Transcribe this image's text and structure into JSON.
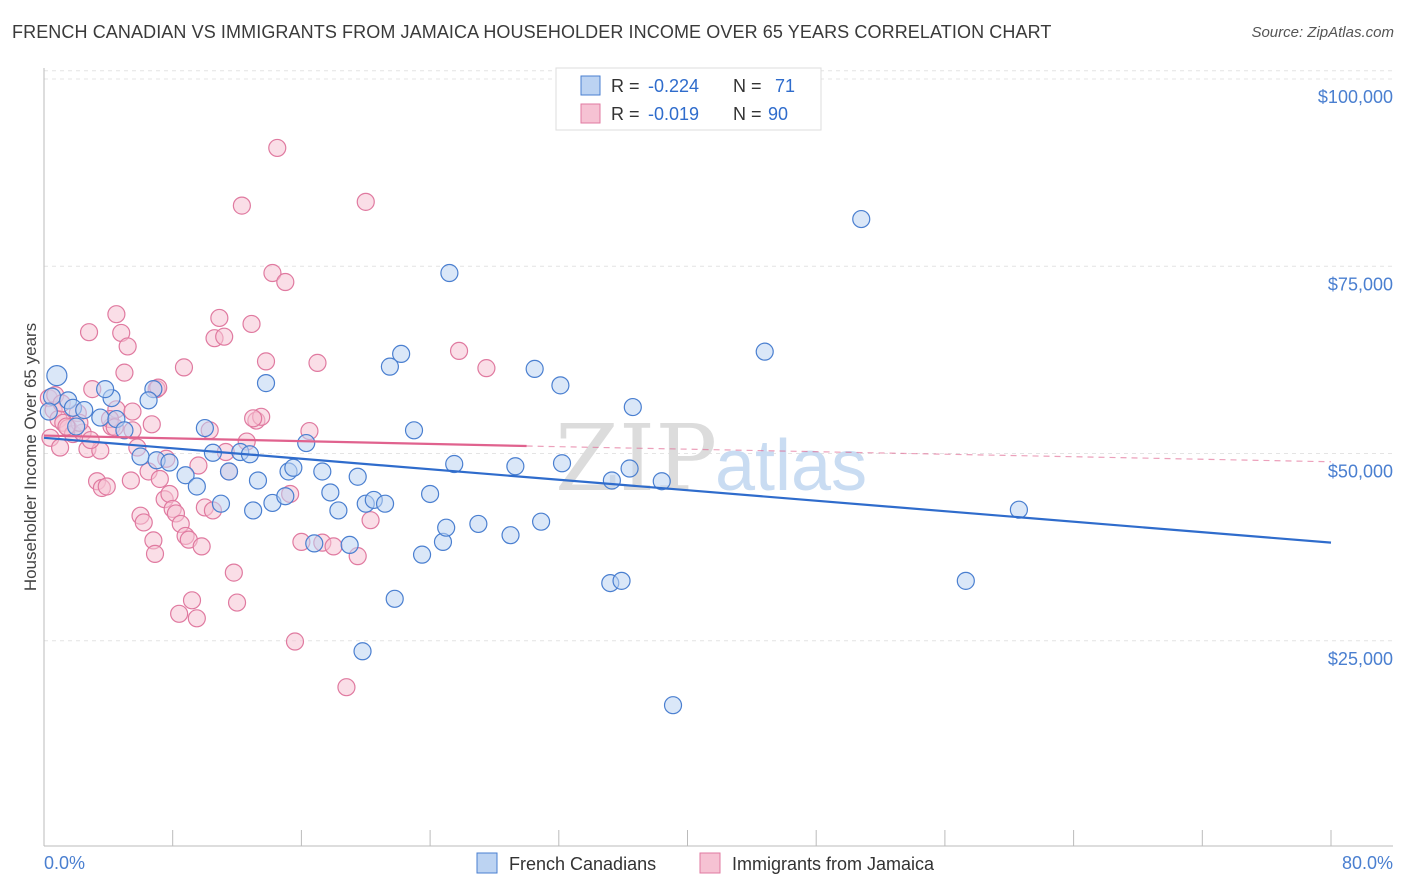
{
  "header": {
    "title": "FRENCH CANADIAN VS IMMIGRANTS FROM JAMAICA HOUSEHOLDER INCOME OVER 65 YEARS CORRELATION CHART",
    "source": "Source: ZipAtlas.com"
  },
  "watermark": {
    "zip": "ZIP",
    "atlas": "atlas"
  },
  "legend": {
    "rows": [
      {
        "r_label": "R = ",
        "r_value": "-0.224",
        "n_label": "N = ",
        "n_value": "71"
      },
      {
        "r_label": "R = ",
        "r_value": "-0.019",
        "n_label": "N = ",
        "n_value": "90"
      }
    ]
  },
  "colors": {
    "blue": "#4a7fd0",
    "blue_fill": "#bcd3f2",
    "blue_line": "#2f6ccc",
    "pink": "#e07aa0",
    "pink_fill": "#f6c2d3",
    "pink_line": "#e0628e"
  },
  "chart_data": {
    "type": "scatter",
    "title": "FRENCH CANADIAN VS IMMIGRANTS FROM JAMAICA HOUSEHOLDER INCOME OVER 65 YEARS CORRELATION CHART",
    "xlabel": "",
    "ylabel": "Householder Income Over 65 years",
    "xlim": [
      0,
      80
    ],
    "ylim": [
      0,
      105000
    ],
    "x_tick_labels": [
      "0.0%",
      "80.0%"
    ],
    "y_ticks": [
      25000,
      50000,
      75000,
      100000
    ],
    "y_tick_labels": [
      "$25,000",
      "$50,000",
      "$75,000",
      "$100,000"
    ],
    "grid": true,
    "legend_position": "top-center",
    "series": [
      {
        "name": "French Canadians",
        "color": "#4a7fd0",
        "trend": {
          "x": [
            0,
            80
          ],
          "y": [
            54500,
            40500
          ]
        },
        "points": [
          [
            0.8,
            62800
          ],
          [
            0.5,
            60000
          ],
          [
            1.5,
            59500
          ],
          [
            0.3,
            58000
          ],
          [
            1.8,
            58500
          ],
          [
            2.5,
            58200
          ],
          [
            2.0,
            56000
          ],
          [
            3.5,
            57200
          ],
          [
            4.5,
            57000
          ],
          [
            4.2,
            59800
          ],
          [
            3.8,
            61000
          ],
          [
            5.0,
            55500
          ],
          [
            6.8,
            61000
          ],
          [
            6.5,
            59500
          ],
          [
            6.0,
            52000
          ],
          [
            7.0,
            51500
          ],
          [
            7.8,
            51200
          ],
          [
            8.8,
            49500
          ],
          [
            9.5,
            48000
          ],
          [
            10.0,
            55800
          ],
          [
            10.5,
            52500
          ],
          [
            11.0,
            45700
          ],
          [
            11.5,
            50000
          ],
          [
            12.2,
            52600
          ],
          [
            12.8,
            52300
          ],
          [
            13.0,
            44800
          ],
          [
            13.3,
            48800
          ],
          [
            13.8,
            61800
          ],
          [
            14.2,
            45800
          ],
          [
            15.0,
            46700
          ],
          [
            15.2,
            50000
          ],
          [
            15.5,
            50500
          ],
          [
            16.3,
            53800
          ],
          [
            16.8,
            40400
          ],
          [
            17.3,
            50000
          ],
          [
            17.8,
            47200
          ],
          [
            18.3,
            44800
          ],
          [
            19.0,
            40200
          ],
          [
            19.5,
            49300
          ],
          [
            20.0,
            45700
          ],
          [
            20.5,
            46200
          ],
          [
            21.2,
            45700
          ],
          [
            21.5,
            64000
          ],
          [
            21.8,
            33000
          ],
          [
            22.2,
            65700
          ],
          [
            23.0,
            55500
          ],
          [
            23.5,
            38900
          ],
          [
            24.0,
            47000
          ],
          [
            24.8,
            40600
          ],
          [
            25.0,
            42500
          ],
          [
            25.5,
            51000
          ],
          [
            25.2,
            76500
          ],
          [
            27.0,
            43000
          ],
          [
            29.0,
            41500
          ],
          [
            29.3,
            50700
          ],
          [
            30.5,
            63700
          ],
          [
            30.9,
            43300
          ],
          [
            32.1,
            61500
          ],
          [
            32.2,
            51100
          ],
          [
            35.2,
            35100
          ],
          [
            35.3,
            48800
          ],
          [
            35.9,
            35400
          ],
          [
            36.4,
            50400
          ],
          [
            36.6,
            58600
          ],
          [
            38.4,
            48700
          ],
          [
            39.1,
            18800
          ],
          [
            44.8,
            66000
          ],
          [
            50.8,
            83700
          ],
          [
            57.3,
            35400
          ],
          [
            60.6,
            44900
          ],
          [
            19.8,
            26000
          ]
        ]
      },
      {
        "name": "Immigrants from Jamaica",
        "color": "#e07aa0",
        "trend": {
          "x": [
            0,
            30
          ],
          "y": [
            54800,
            53400
          ]
        },
        "trend_dashed": {
          "x": [
            30,
            80
          ],
          "y": [
            53400,
            51300
          ]
        },
        "points": [
          [
            0.3,
            59800
          ],
          [
            0.6,
            58200
          ],
          [
            0.9,
            57000
          ],
          [
            1.2,
            56500
          ],
          [
            1.5,
            55800
          ],
          [
            1.8,
            55000
          ],
          [
            0.4,
            54500
          ],
          [
            1.0,
            53200
          ],
          [
            2.1,
            57800
          ],
          [
            2.4,
            55200
          ],
          [
            2.7,
            53000
          ],
          [
            0.7,
            60200
          ],
          [
            2.8,
            68600
          ],
          [
            3.0,
            61000
          ],
          [
            3.3,
            48700
          ],
          [
            3.6,
            47800
          ],
          [
            3.9,
            48000
          ],
          [
            4.2,
            56000
          ],
          [
            4.5,
            58300
          ],
          [
            4.5,
            71000
          ],
          [
            4.8,
            68500
          ],
          [
            5.0,
            63200
          ],
          [
            5.2,
            66700
          ],
          [
            5.5,
            55500
          ],
          [
            5.5,
            58000
          ],
          [
            5.8,
            53200
          ],
          [
            6.0,
            44100
          ],
          [
            6.2,
            43200
          ],
          [
            6.5,
            50000
          ],
          [
            6.8,
            40800
          ],
          [
            7.0,
            61000
          ],
          [
            7.2,
            49000
          ],
          [
            7.5,
            46300
          ],
          [
            7.8,
            47000
          ],
          [
            8.0,
            45000
          ],
          [
            8.2,
            44400
          ],
          [
            8.5,
            43000
          ],
          [
            8.8,
            41400
          ],
          [
            9.0,
            40900
          ],
          [
            9.2,
            32800
          ],
          [
            9.5,
            30400
          ],
          [
            9.8,
            40000
          ],
          [
            10.0,
            45200
          ],
          [
            10.3,
            55500
          ],
          [
            10.6,
            67800
          ],
          [
            10.9,
            70500
          ],
          [
            11.2,
            68000
          ],
          [
            11.5,
            50000
          ],
          [
            11.8,
            36500
          ],
          [
            12.0,
            32500
          ],
          [
            12.3,
            85500
          ],
          [
            12.6,
            54000
          ],
          [
            12.9,
            69700
          ],
          [
            13.2,
            56800
          ],
          [
            13.5,
            57300
          ],
          [
            13.8,
            64700
          ],
          [
            14.2,
            76500
          ],
          [
            14.5,
            93200
          ],
          [
            15.0,
            75300
          ],
          [
            15.3,
            47000
          ],
          [
            15.6,
            27300
          ],
          [
            16.0,
            40600
          ],
          [
            16.5,
            55400
          ],
          [
            17.0,
            64500
          ],
          [
            17.3,
            40500
          ],
          [
            18.0,
            40000
          ],
          [
            18.8,
            21200
          ],
          [
            19.5,
            38700
          ],
          [
            20.0,
            86000
          ],
          [
            20.3,
            43500
          ],
          [
            25.8,
            66100
          ],
          [
            27.5,
            63800
          ],
          [
            8.4,
            31000
          ],
          [
            7.1,
            61200
          ],
          [
            3.5,
            52800
          ],
          [
            2.2,
            56500
          ],
          [
            1.4,
            56000
          ],
          [
            6.9,
            39000
          ],
          [
            4.1,
            57000
          ],
          [
            9.6,
            50800
          ],
          [
            10.5,
            44800
          ],
          [
            11.3,
            52600
          ],
          [
            13.0,
            57100
          ],
          [
            5.4,
            48800
          ],
          [
            1.1,
            59100
          ],
          [
            2.9,
            54200
          ],
          [
            4.4,
            55900
          ],
          [
            7.6,
            51700
          ],
          [
            8.7,
            63900
          ],
          [
            6.7,
            56300
          ]
        ]
      }
    ]
  },
  "bottom_legend": [
    "French Canadians",
    "Immigrants from Jamaica"
  ]
}
